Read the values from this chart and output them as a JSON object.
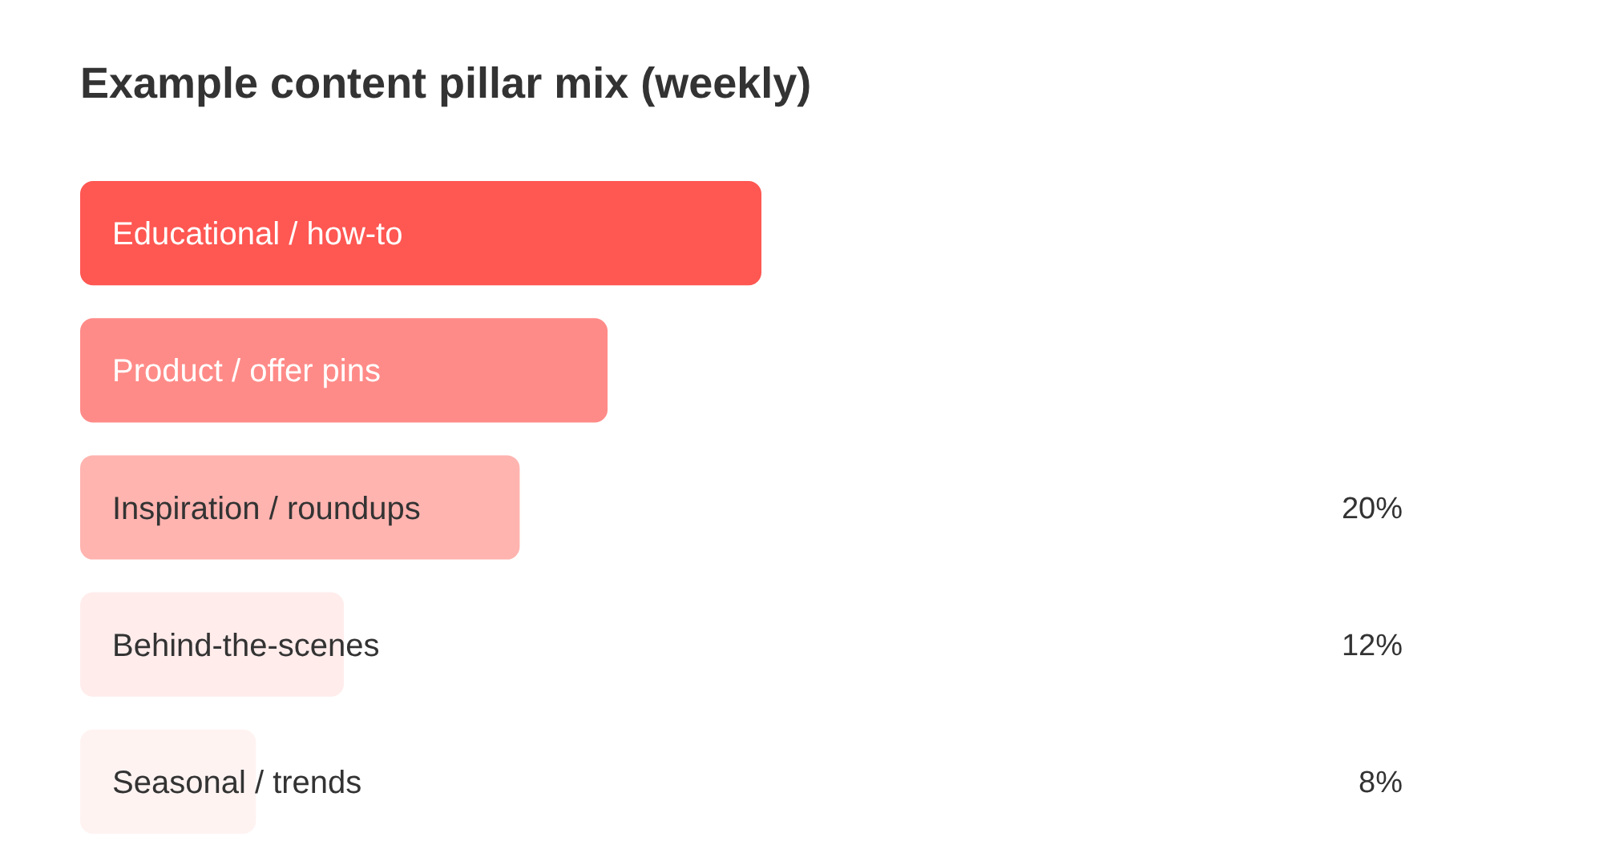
{
  "chart_data": {
    "type": "bar",
    "orientation": "horizontal",
    "title": "Example content pillar mix (weekly)",
    "categories": [
      "Educational / how-to",
      "Product / offer pins",
      "Inspiration / roundups",
      "Behind-the-scenes",
      "Seasonal / trends"
    ],
    "values": [
      31,
      24,
      20,
      12,
      8
    ],
    "colors": [
      "#ff5752",
      "#ff8b88",
      "#ffb4b0",
      "#ffeceb",
      "#fff3f2"
    ],
    "value_labels": [
      null,
      null,
      "20%",
      "12%",
      "8%"
    ]
  }
}
